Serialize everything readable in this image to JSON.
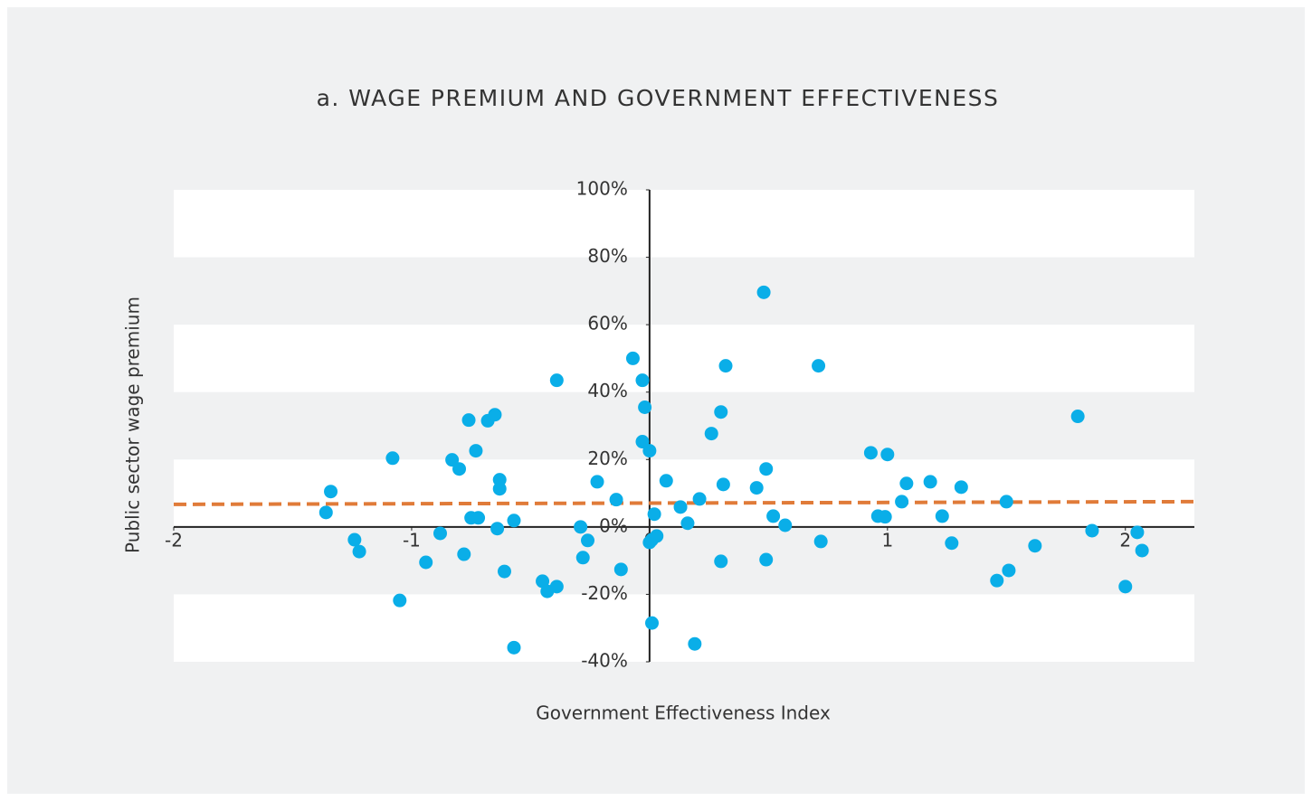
{
  "chart_data": {
    "type": "scatter",
    "title": "a. WAGE PREMIUM AND GOVERNMENT EFFECTIVENESS",
    "xlabel": "Government Effectiveness Index",
    "ylabel": "Public sector wage premium",
    "color": "#0aaee8",
    "x": [
      -1.34,
      -1.36,
      -1.24,
      -1.22,
      -1.08,
      -1.05,
      -0.94,
      -0.88,
      -0.83,
      -0.8,
      -0.78,
      -0.76,
      -0.75,
      -0.72,
      -0.73,
      -0.68,
      -0.65,
      -0.64,
      -0.63,
      -0.63,
      -0.61,
      -0.57,
      -0.57,
      -0.45,
      -0.43,
      -0.39,
      -0.39,
      -0.29,
      -0.28,
      -0.26,
      -0.22,
      -0.14,
      -0.12,
      -0.07,
      -0.03,
      -0.02,
      -0.03,
      0.0,
      0.0,
      0.01,
      0.02,
      0.01,
      0.03,
      0.07,
      0.13,
      0.16,
      0.21,
      0.19,
      0.26,
      0.3,
      0.32,
      0.31,
      0.3,
      0.45,
      0.48,
      0.49,
      0.49,
      0.52,
      0.57,
      0.71,
      0.72,
      0.93,
      0.96,
      0.99,
      1.0,
      1.06,
      1.08,
      1.18,
      1.23,
      1.27,
      1.31,
      1.46,
      1.5,
      1.51,
      1.62,
      1.8,
      1.86,
      2.0,
      2.05,
      2.07
    ],
    "values": [
      10.5,
      4.3,
      -3.8,
      -7.3,
      20.4,
      -21.8,
      -10.5,
      -1.9,
      19.9,
      17.2,
      -8.1,
      31.7,
      2.7,
      2.7,
      22.6,
      31.5,
      33.3,
      -0.5,
      14.0,
      11.3,
      -13.2,
      1.9,
      -35.8,
      -16.1,
      -19.1,
      -17.7,
      43.5,
      0,
      -9.1,
      -4.0,
      13.4,
      8.1,
      -12.6,
      50.0,
      43.5,
      35.5,
      25.3,
      22.6,
      -4.6,
      -3.8,
      3.8,
      -28.5,
      -2.7,
      13.7,
      5.9,
      1.1,
      8.3,
      -34.7,
      27.7,
      34.1,
      47.8,
      12.6,
      -10.2,
      11.6,
      69.6,
      17.2,
      -9.7,
      3.2,
      0.5,
      47.8,
      -4.3,
      22.0,
      3.2,
      3.0,
      21.5,
      7.5,
      12.9,
      13.4,
      3.2,
      -4.8,
      11.8,
      -15.9,
      7.5,
      -12.9,
      -5.6,
      32.8,
      -1.1,
      -17.7,
      -1.6,
      -7.0
    ],
    "trendline": {
      "color": "#e07b39",
      "x": [
        -2,
        2.29
      ],
      "values": [
        6.7,
        7.5
      ]
    },
    "xlim": [
      -2,
      2.29
    ],
    "ylim": [
      -40,
      100
    ],
    "xticks": [
      -2,
      -1,
      0,
      1,
      2
    ],
    "yticks": [
      {
        "value": -40,
        "label": "-40%"
      },
      {
        "value": -20,
        "label": "-20%"
      },
      {
        "value": 0,
        "label": "0%"
      },
      {
        "value": 20,
        "label": "20%"
      },
      {
        "value": 40,
        "label": "40%"
      },
      {
        "value": 60,
        "label": "60%"
      },
      {
        "value": 80,
        "label": "80%"
      },
      {
        "value": 100,
        "label": "100%"
      }
    ],
    "bands": true
  }
}
